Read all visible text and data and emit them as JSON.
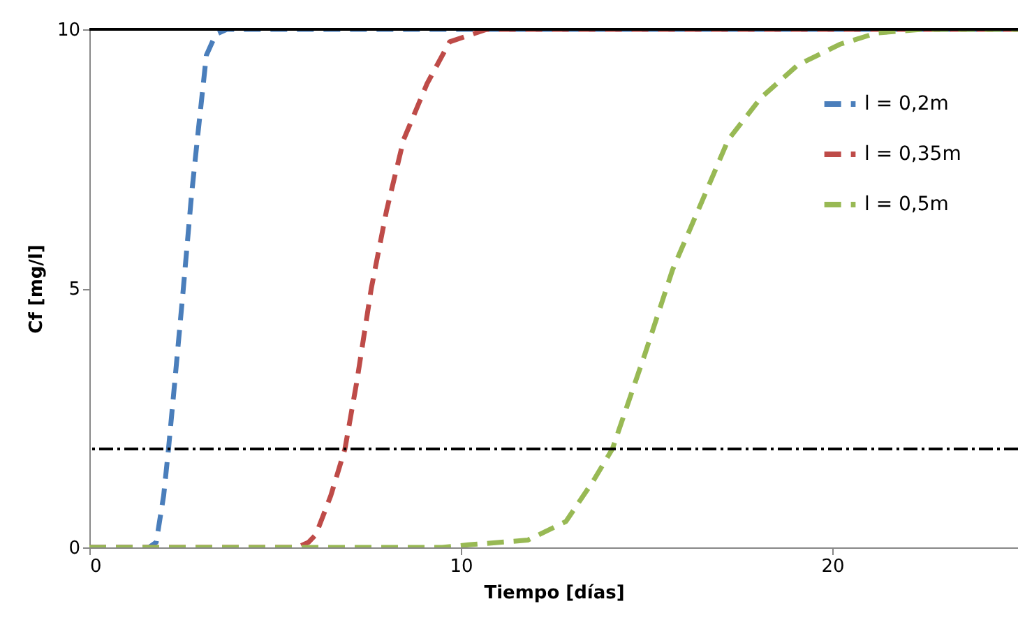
{
  "chart_data": {
    "type": "line",
    "xlabel": "Tiempo [días]",
    "ylabel": "Cf [mg/l]",
    "xlim": [
      0,
      25
    ],
    "ylim": [
      0,
      10
    ],
    "xticks": [
      0,
      10,
      20
    ],
    "yticks": [
      0,
      5,
      10
    ],
    "grid": false,
    "legend": "top right",
    "line_style": "dashed",
    "marker": "none",
    "series": [
      {
        "name": "l = 0,2m",
        "color": "#4a7ebb",
        "x": [
          0,
          1.6,
          1.8,
          2.0,
          2.13,
          2.3,
          2.53,
          2.75,
          2.91,
          3.15,
          3.4,
          3.7,
          25
        ],
        "values": [
          0,
          0,
          0.1,
          1.0,
          1.9,
          3.2,
          5,
          6.8,
          7.9,
          9.5,
          9.9,
          10,
          10
        ]
      },
      {
        "name": "l = 0,35m",
        "color": "#be4b48",
        "x": [
          0,
          5.6,
          5.9,
          6.1,
          6.5,
          6.88,
          7.2,
          7.59,
          8.0,
          8.46,
          9.09,
          9.7,
          10.7,
          25
        ],
        "values": [
          0,
          0,
          0.1,
          0.25,
          1.0,
          1.9,
          3.2,
          5,
          6.5,
          7.87,
          8.95,
          9.76,
          10,
          10
        ]
      },
      {
        "name": "l = 0,5m",
        "color": "#98b954",
        "x": [
          0,
          9.5,
          10.2,
          11.8,
          12.83,
          13.58,
          14.08,
          14.96,
          15.7,
          16.45,
          17.2,
          18.08,
          19.07,
          20.2,
          21.2,
          22.4,
          25
        ],
        "values": [
          0,
          0,
          0.05,
          0.14,
          0.5,
          1.3,
          1.9,
          3.74,
          5.36,
          6.61,
          7.87,
          8.68,
          9.31,
          9.71,
          9.93,
          10,
          10
        ]
      }
    ],
    "ref_lines": [
      {
        "axis": "y",
        "value": 10,
        "color": "#000000",
        "line_style": "solid"
      },
      {
        "axis": "y",
        "value": 1.9,
        "color": "#000000",
        "line_style": "dashed"
      }
    ]
  }
}
